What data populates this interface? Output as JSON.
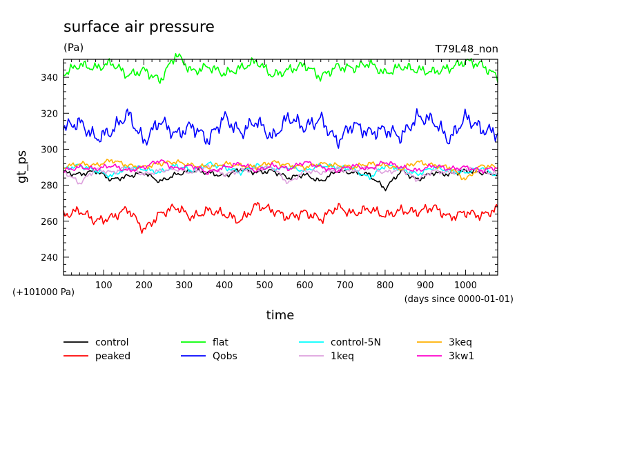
{
  "chart_data": {
    "type": "line",
    "title": "surface air pressure",
    "units": "(Pa)",
    "run_label": "T79L48_non",
    "ylabel": "gt_ps",
    "xlabel": "time",
    "offset_note": "(+101000 Pa)",
    "x_units_note": "(days since 0000-01-01)",
    "xlim": [
      0,
      1080
    ],
    "ylim": [
      230,
      350
    ],
    "x_ticks": [
      100,
      200,
      300,
      400,
      500,
      600,
      700,
      800,
      900,
      1000
    ],
    "y_ticks": [
      240,
      260,
      280,
      300,
      320,
      340
    ],
    "series": [
      {
        "name": "control",
        "color": "#000000",
        "x": [
          0,
          40,
          80,
          120,
          160,
          200,
          240,
          280,
          320,
          360,
          400,
          440,
          480,
          520,
          560,
          600,
          640,
          680,
          720,
          760,
          800,
          840,
          880,
          920,
          960,
          1000,
          1040,
          1080
        ],
        "values": [
          287,
          286,
          288,
          283,
          285,
          287,
          282,
          286,
          288,
          287,
          285,
          289,
          287,
          288,
          284,
          286,
          282,
          288,
          287,
          286,
          278,
          288,
          283,
          287,
          286,
          288,
          287,
          286
        ]
      },
      {
        "name": "peaked",
        "color": "#ff0000",
        "x": [
          0,
          40,
          80,
          120,
          160,
          200,
          240,
          280,
          320,
          360,
          400,
          440,
          480,
          520,
          560,
          600,
          640,
          680,
          720,
          760,
          800,
          840,
          880,
          920,
          960,
          1000,
          1040,
          1080
        ],
        "values": [
          263,
          266,
          260,
          262,
          267,
          255,
          264,
          268,
          262,
          266,
          264,
          260,
          269,
          266,
          262,
          265,
          261,
          268,
          264,
          267,
          263,
          266,
          265,
          268,
          262,
          265,
          263,
          267
        ]
      },
      {
        "name": "flat",
        "color": "#00ff00",
        "x": [
          0,
          40,
          80,
          120,
          160,
          200,
          240,
          280,
          320,
          360,
          400,
          440,
          480,
          520,
          560,
          600,
          640,
          680,
          720,
          760,
          800,
          840,
          880,
          920,
          960,
          1000,
          1040,
          1080
        ],
        "values": [
          342,
          347,
          345,
          348,
          341,
          344,
          338,
          353,
          343,
          346,
          342,
          345,
          349,
          341,
          344,
          347,
          340,
          346,
          345,
          348,
          342,
          346,
          344,
          343,
          345,
          349,
          347,
          340
        ]
      },
      {
        "name": "Qobs",
        "color": "#0000ff",
        "x": [
          0,
          40,
          80,
          120,
          160,
          200,
          240,
          280,
          320,
          360,
          400,
          440,
          480,
          520,
          560,
          600,
          640,
          680,
          720,
          760,
          800,
          840,
          880,
          920,
          960,
          1000,
          1040,
          1080
        ],
        "values": [
          312,
          315,
          306,
          310,
          320,
          304,
          316,
          308,
          313,
          305,
          318,
          309,
          316,
          306,
          318,
          312,
          317,
          304,
          314,
          309,
          311,
          307,
          318,
          316,
          305,
          318,
          311,
          309
        ]
      },
      {
        "name": "control-5N",
        "color": "#00ffff",
        "x": [
          0,
          40,
          80,
          120,
          160,
          200,
          240,
          280,
          320,
          360,
          400,
          440,
          480,
          520,
          560,
          600,
          640,
          680,
          720,
          760,
          800,
          840,
          880,
          920,
          960,
          1000,
          1040,
          1080
        ],
        "values": [
          289,
          291,
          288,
          285,
          290,
          289,
          287,
          291,
          288,
          292,
          290,
          287,
          291,
          289,
          290,
          288,
          291,
          290,
          289,
          284,
          291,
          289,
          286,
          290,
          288,
          287,
          290,
          285
        ]
      },
      {
        "name": "1keq",
        "color": "#dda0dd",
        "x": [
          0,
          40,
          80,
          120,
          160,
          200,
          240,
          280,
          320,
          360,
          400,
          440,
          480,
          520,
          560,
          600,
          640,
          680,
          720,
          760,
          800,
          840,
          880,
          920,
          960,
          1000,
          1040,
          1080
        ],
        "values": [
          288,
          281,
          289,
          287,
          290,
          286,
          288,
          289,
          287,
          290,
          286,
          288,
          289,
          290,
          281,
          288,
          287,
          289,
          288,
          290,
          287,
          289,
          283,
          288,
          287,
          289,
          288,
          286
        ]
      },
      {
        "name": "3keq",
        "color": "#ffb000",
        "x": [
          0,
          40,
          80,
          120,
          160,
          200,
          240,
          280,
          320,
          360,
          400,
          440,
          480,
          520,
          560,
          600,
          640,
          680,
          720,
          760,
          800,
          840,
          880,
          920,
          960,
          1000,
          1040,
          1080
        ],
        "values": [
          290,
          292,
          291,
          294,
          291,
          290,
          292,
          293,
          291,
          290,
          292,
          291,
          290,
          293,
          291,
          290,
          292,
          291,
          290,
          292,
          291,
          289,
          293,
          291,
          290,
          283,
          291,
          290
        ]
      },
      {
        "name": "3kw1",
        "color": "#ff00cc",
        "x": [
          0,
          40,
          80,
          120,
          160,
          200,
          240,
          280,
          320,
          360,
          400,
          440,
          480,
          520,
          560,
          600,
          640,
          680,
          720,
          760,
          800,
          840,
          880,
          920,
          960,
          1000,
          1040,
          1080
        ],
        "values": [
          288,
          290,
          289,
          291,
          288,
          290,
          294,
          289,
          291,
          287,
          290,
          292,
          288,
          291,
          289,
          293,
          290,
          288,
          291,
          289,
          293,
          290,
          288,
          291,
          289,
          290,
          288,
          290
        ]
      }
    ]
  }
}
